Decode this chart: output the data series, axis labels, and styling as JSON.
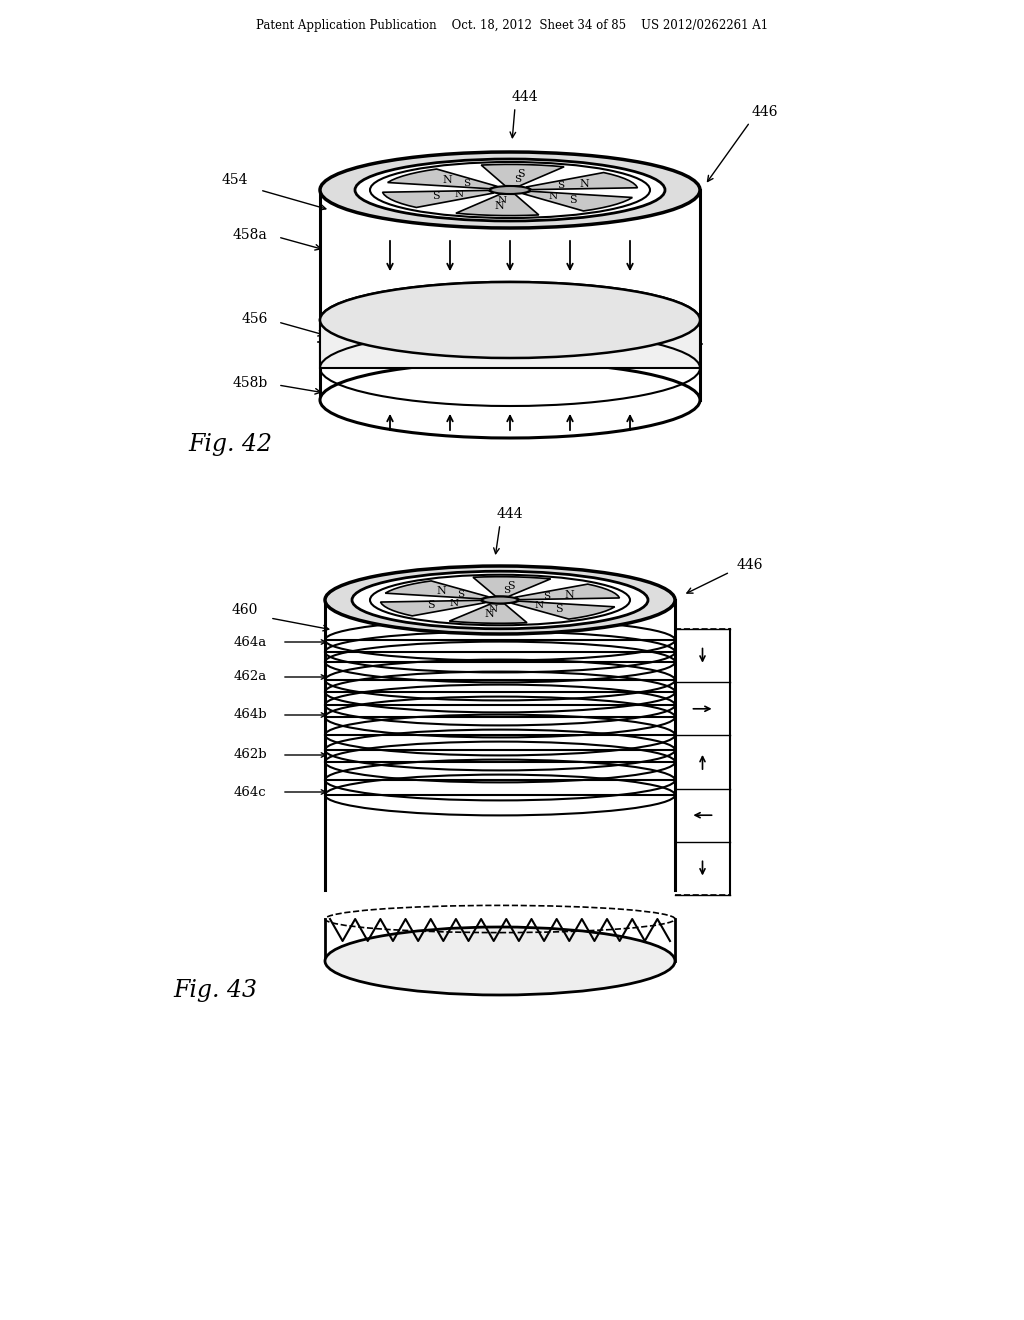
{
  "bg_color": "#ffffff",
  "header_text": "Patent Application Publication    Oct. 18, 2012  Sheet 34 of 85    US 2012/0262261 A1",
  "fig42_label": "Fig. 42",
  "fig43_label": "Fig. 43"
}
